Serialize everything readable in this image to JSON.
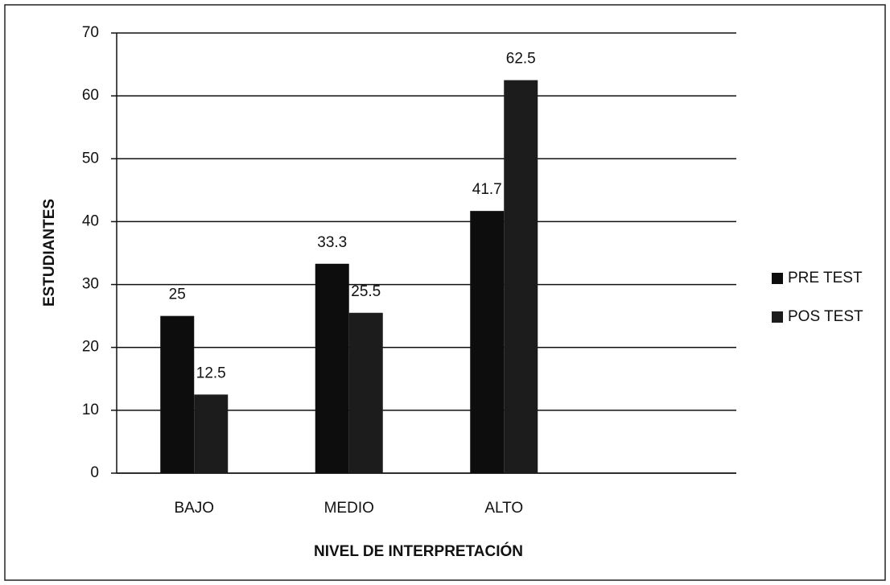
{
  "chart_data": {
    "type": "bar",
    "x_label": "NIVEL DE INTERPRETACIÓN",
    "y_label": "ESTUDIANTES",
    "categories": [
      "BAJO",
      "MEDIO",
      "ALTO",
      null
    ],
    "series": [
      {
        "name": "PRE TEST",
        "color": "#0d0d0d",
        "values": [
          25,
          33.3,
          41.7,
          null
        ]
      },
      {
        "name": "POS TEST",
        "color": "#1c1c1c",
        "values": [
          12.5,
          25.5,
          62.5,
          null
        ]
      }
    ],
    "ylim": [
      0,
      70
    ],
    "yticks": [
      0,
      10,
      20,
      30,
      40,
      50,
      60,
      70
    ],
    "grid": true,
    "legend": "right"
  }
}
